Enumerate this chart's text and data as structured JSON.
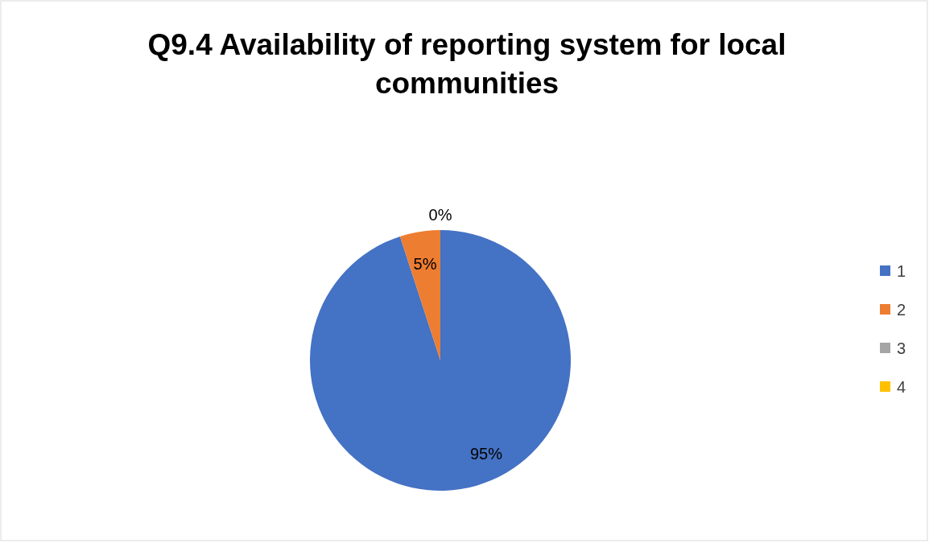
{
  "chart_data": {
    "type": "pie",
    "title": "Q9.4 Availability of reporting system for local communities",
    "categories": [
      "1",
      "2",
      "3",
      "4"
    ],
    "values": [
      95,
      5,
      0,
      0
    ],
    "colors": [
      "#4472c4",
      "#ed7d31",
      "#a5a5a5",
      "#ffc000"
    ],
    "value_labels": [
      "95%",
      "5%",
      "0%",
      null
    ],
    "legend": "right"
  }
}
